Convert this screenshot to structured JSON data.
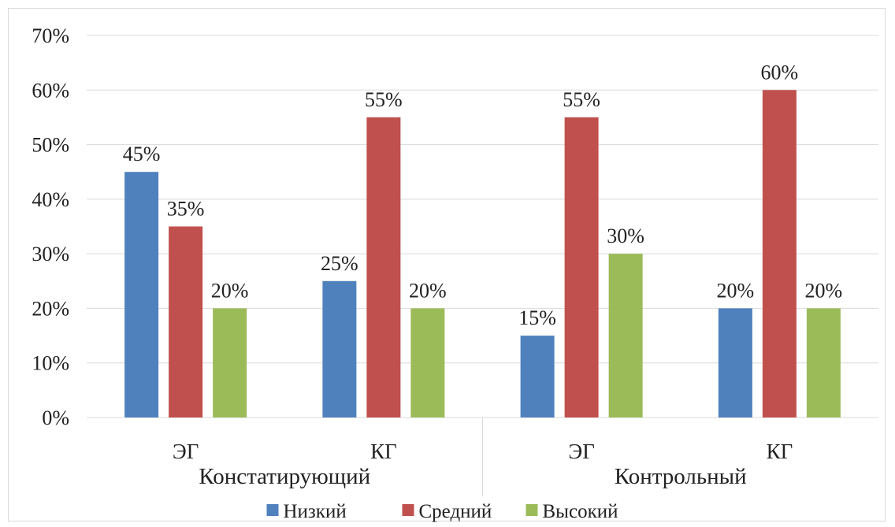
{
  "chart_data": {
    "type": "bar",
    "categories": [
      "ЭГ",
      "КГ",
      "ЭГ",
      "КГ"
    ],
    "groups": [
      {
        "label": "Констатирующий",
        "categories": [
          0,
          1
        ]
      },
      {
        "label": "Контрольный",
        "categories": [
          2,
          3
        ]
      }
    ],
    "series": [
      {
        "name": "Низкий",
        "color": "#4f81bd",
        "values": [
          45,
          25,
          15,
          20
        ],
        "labels": [
          "45%",
          "25%",
          "15%",
          "20%"
        ]
      },
      {
        "name": "Средний",
        "color": "#c0504d",
        "values": [
          35,
          55,
          55,
          60
        ],
        "labels": [
          "35%",
          "55%",
          "55%",
          "60%"
        ]
      },
      {
        "name": "Высокий",
        "color": "#9bbb59",
        "values": [
          20,
          20,
          30,
          20
        ],
        "labels": [
          "20%",
          "20%",
          "30%",
          "20%"
        ]
      }
    ],
    "ylim": [
      0,
      70
    ],
    "yticks": [
      "0%",
      "10%",
      "20%",
      "30%",
      "40%",
      "50%",
      "60%",
      "70%"
    ],
    "grid": true,
    "legend_position": "bottom"
  }
}
